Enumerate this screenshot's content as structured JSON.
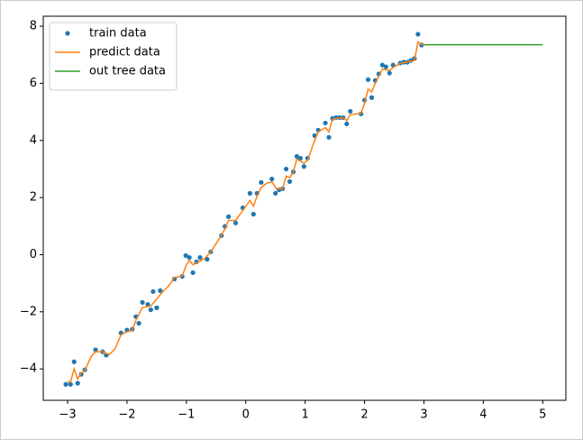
{
  "chart_data": {
    "type": "scatter",
    "xlim": [
      -3.41,
      5.39
    ],
    "ylim": [
      -5.1,
      8.35
    ],
    "xticks": [
      {
        "value": -3,
        "label": "−3"
      },
      {
        "value": -2,
        "label": "−2"
      },
      {
        "value": -1,
        "label": "−1"
      },
      0,
      1,
      2,
      3,
      4,
      5
    ],
    "yticks": [
      {
        "value": -4,
        "label": "−4"
      },
      {
        "value": -2,
        "label": "−2"
      },
      0,
      2,
      4,
      6,
      8
    ],
    "grid": false,
    "legend": "upper left",
    "series": [
      {
        "name": "train data",
        "color": "#1f77b4",
        "style": "marker",
        "x": [
          -3.03,
          -2.95,
          -2.89,
          -2.83,
          -2.77,
          -2.71,
          -2.53,
          -2.41,
          -2.35,
          -2.1,
          -2.0,
          -1.91,
          -1.85,
          -1.8,
          -1.74,
          -1.65,
          -1.6,
          -1.56,
          -1.5,
          -1.44,
          -1.2,
          -1.07,
          -1.01,
          -0.95,
          -0.89,
          -0.83,
          -0.77,
          -0.65,
          -0.59,
          -0.41,
          -0.35,
          -0.29,
          -0.17,
          -0.05,
          0.07,
          0.13,
          0.19,
          0.26,
          0.44,
          0.5,
          0.56,
          0.62,
          0.68,
          0.74,
          0.8,
          0.86,
          0.92,
          0.98,
          1.04,
          1.16,
          1.22,
          1.34,
          1.4,
          1.46,
          1.52,
          1.58,
          1.64,
          1.7,
          1.76,
          1.94,
          2.0,
          2.06,
          2.12,
          2.18,
          2.24,
          2.3,
          2.36,
          2.42,
          2.48,
          2.6,
          2.66,
          2.72,
          2.78,
          2.84,
          2.9,
          2.96
        ],
        "values": [
          -4.54,
          -4.54,
          -3.75,
          -4.5,
          -4.19,
          -4.03,
          -3.33,
          -3.4,
          -3.52,
          -2.74,
          -2.64,
          -2.61,
          -2.17,
          -2.4,
          -1.67,
          -1.74,
          -1.93,
          -1.29,
          -1.86,
          -1.26,
          -0.85,
          -0.76,
          -0.03,
          -0.1,
          -0.63,
          -0.25,
          -0.1,
          -0.16,
          0.1,
          0.67,
          0.99,
          1.33,
          1.11,
          1.64,
          2.15,
          1.42,
          2.15,
          2.53,
          2.65,
          2.15,
          2.27,
          2.31,
          3.0,
          2.56,
          2.9,
          3.44,
          3.38,
          3.09,
          3.38,
          4.17,
          4.36,
          4.61,
          4.11,
          4.77,
          4.8,
          4.8,
          4.8,
          4.58,
          5.02,
          4.93,
          5.41,
          6.13,
          5.5,
          6.1,
          6.33,
          6.64,
          6.58,
          6.36,
          6.64,
          6.71,
          6.74,
          6.74,
          6.8,
          6.87,
          7.72,
          7.34
        ]
      },
      {
        "name": "predict data",
        "color": "#ff7f0e",
        "style": "line",
        "x": [
          -3,
          -2.95,
          -2.89,
          -2.83,
          -2.77,
          -2.71,
          -2.6,
          -2.53,
          -2.41,
          -2.3,
          -2.2,
          -2.1,
          -2.0,
          -1.91,
          -1.85,
          -1.74,
          -1.6,
          -1.5,
          -1.4,
          -1.3,
          -1.2,
          -1.07,
          -1.0,
          -0.95,
          -0.89,
          -0.8,
          -0.7,
          -0.59,
          -0.45,
          -0.35,
          -0.29,
          -0.17,
          -0.05,
          0.07,
          0.13,
          0.19,
          0.26,
          0.35,
          0.44,
          0.52,
          0.62,
          0.68,
          0.74,
          0.8,
          0.86,
          0.98,
          1.04,
          1.16,
          1.22,
          1.34,
          1.4,
          1.46,
          1.64,
          1.7,
          1.76,
          1.94,
          2.0,
          2.06,
          2.12,
          2.18,
          2.3,
          2.42,
          2.48,
          2.6,
          2.84,
          2.9,
          2.96,
          3.0
        ],
        "values": [
          -4.45,
          -4.45,
          -4.0,
          -4.35,
          -4.15,
          -4.05,
          -3.55,
          -3.4,
          -3.4,
          -3.5,
          -3.3,
          -2.8,
          -2.7,
          -2.65,
          -2.3,
          -1.85,
          -1.8,
          -1.55,
          -1.3,
          -1.1,
          -0.8,
          -0.75,
          -0.35,
          -0.2,
          -0.35,
          -0.25,
          -0.15,
          0.1,
          0.55,
          0.9,
          1.2,
          1.2,
          1.55,
          1.9,
          1.7,
          2.05,
          2.35,
          2.5,
          2.55,
          2.3,
          2.3,
          2.75,
          2.7,
          2.9,
          3.35,
          3.2,
          3.3,
          4.0,
          4.3,
          4.45,
          4.3,
          4.75,
          4.8,
          4.7,
          4.9,
          4.95,
          5.3,
          5.8,
          5.7,
          6.0,
          6.5,
          6.45,
          6.55,
          6.7,
          6.8,
          7.45,
          7.35,
          7.35
        ]
      },
      {
        "name": "out tree data",
        "color": "#2ca02c",
        "style": "line",
        "x": [
          3,
          5
        ],
        "values": [
          7.35,
          7.35
        ]
      }
    ]
  }
}
